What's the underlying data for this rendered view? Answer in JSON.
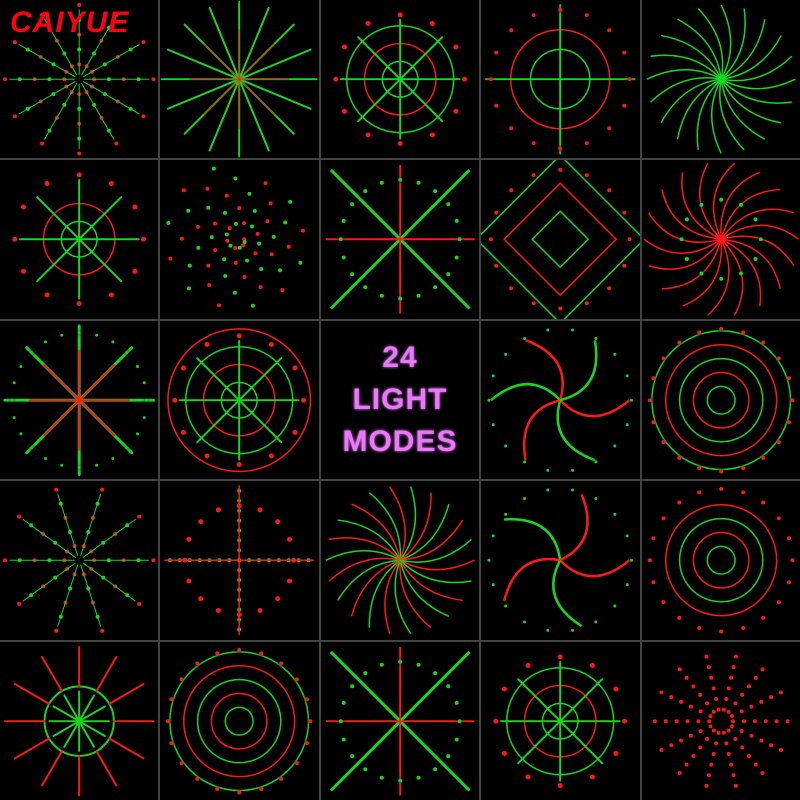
{
  "brand": {
    "text": "CAIYUE",
    "color": "#ff0012"
  },
  "title": {
    "line1": "24",
    "line2": "LIGHT",
    "line3": "MODES",
    "color": "#e879f9"
  },
  "colors": {
    "green": "#18d820",
    "red": "#ff1a1a",
    "bg": "#000000",
    "grid_line": "#444444"
  },
  "grid": {
    "cols": 5,
    "rows": 5,
    "gap": 2,
    "center_cell_index": 12
  },
  "patterns": [
    {
      "type": "burst_dots",
      "rays": 12,
      "green": true,
      "red": true
    },
    {
      "type": "ray_spokes",
      "rays": 16,
      "green": true,
      "red": false
    },
    {
      "type": "ring_star",
      "rings": 3,
      "green": true,
      "red": true
    },
    {
      "type": "cross_rings",
      "green": true,
      "red": true
    },
    {
      "type": "spiral_lines",
      "arms": 20,
      "green": true,
      "red": false
    },
    {
      "type": "ring_star",
      "rings": 2,
      "green": true,
      "red": true
    },
    {
      "type": "dot_spiral",
      "green": true,
      "red": true
    },
    {
      "type": "x_cross",
      "green": true,
      "red": true
    },
    {
      "type": "square_rings",
      "green": true,
      "red": true
    },
    {
      "type": "curve_burst",
      "arms": 18,
      "green": false,
      "red": true
    },
    {
      "type": "star8",
      "green": true,
      "red": true
    },
    {
      "type": "ring_star",
      "rings": 4,
      "green": true,
      "red": true
    },
    {
      "type": "title"
    },
    {
      "type": "pinwheel",
      "arms": 6,
      "green": true,
      "red": true
    },
    {
      "type": "conc_rings",
      "rings": 5,
      "green": true,
      "red": true
    },
    {
      "type": "burst_dots",
      "rays": 10,
      "green": true,
      "red": true
    },
    {
      "type": "dot_cross",
      "green": true,
      "red": true
    },
    {
      "type": "spiral_lines",
      "arms": 22,
      "green": true,
      "red": true
    },
    {
      "type": "pinwheel",
      "arms": 5,
      "green": true,
      "red": true
    },
    {
      "type": "conc_rings",
      "rings": 4,
      "green": true,
      "red": true
    },
    {
      "type": "starburst_ring",
      "green": true,
      "red": true
    },
    {
      "type": "conc_rings",
      "rings": 5,
      "green": true,
      "red": true
    },
    {
      "type": "x_cross",
      "green": true,
      "red": true
    },
    {
      "type": "ring_star",
      "rings": 3,
      "green": true,
      "red": true
    },
    {
      "type": "dot_radial",
      "rays": 14,
      "green": true,
      "red": true
    }
  ]
}
